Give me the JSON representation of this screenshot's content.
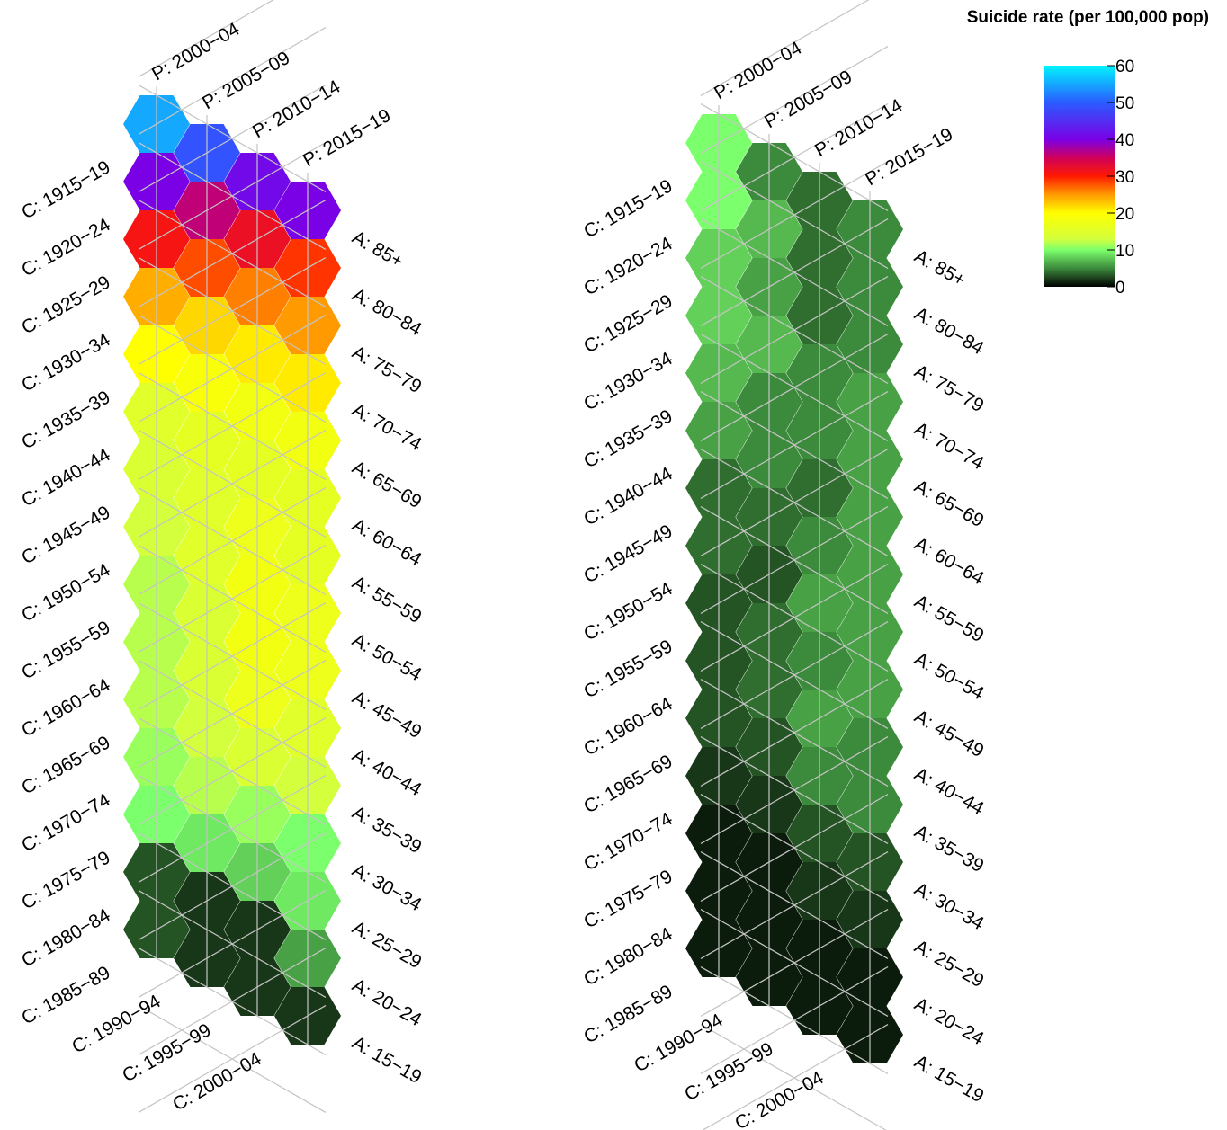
{
  "chart_data": {
    "type": "heatmap",
    "layout": "lexis-hexagon",
    "legend": {
      "title": "Suicide rate (per 100,000 pop)",
      "placement": "top-right",
      "range": [
        0,
        60
      ],
      "ticks": [
        0,
        10,
        20,
        30,
        40,
        50,
        60
      ],
      "stops": [
        {
          "value": 0,
          "color": "#000000"
        },
        {
          "value": 5,
          "color": "#3c8a3c"
        },
        {
          "value": 10,
          "color": "#7cff6c"
        },
        {
          "value": 13,
          "color": "#d4ff3c"
        },
        {
          "value": 20,
          "color": "#ffff00"
        },
        {
          "value": 25,
          "color": "#ff9a00"
        },
        {
          "value": 30,
          "color": "#ff1a00"
        },
        {
          "value": 35,
          "color": "#d0005a"
        },
        {
          "value": 40,
          "color": "#7a00e6"
        },
        {
          "value": 50,
          "color": "#2a5cff"
        },
        {
          "value": 60,
          "color": "#00f4ff"
        }
      ]
    },
    "periods": [
      "P: 2000−04",
      "P: 2005−09",
      "P: 2010−14",
      "P: 2015−19"
    ],
    "ages": [
      "A: 85+",
      "A: 80−84",
      "A: 75−79",
      "A: 70−74",
      "A: 65−69",
      "A: 60−64",
      "A: 55−59",
      "A: 50−54",
      "A: 45−49",
      "A: 40−44",
      "A: 35−39",
      "A: 30−34",
      "A: 25−29",
      "A: 20−24",
      "A: 15−19"
    ],
    "cohorts": [
      "C: 1915−19",
      "C: 1920−24",
      "C: 1925−29",
      "C: 1930−34",
      "C: 1935−39",
      "C: 1940−44",
      "C: 1945−49",
      "C: 1950−54",
      "C: 1955−59",
      "C: 1960−64",
      "C: 1965−69",
      "C: 1970−74",
      "C: 1975−79",
      "C: 1980−84",
      "C: 1985−89",
      "C: 1990−94",
      "C: 1995−99",
      "C: 2000−04"
    ],
    "panels": [
      {
        "name": "",
        "rates": [
          [
            55,
            49,
            41,
            40
          ],
          [
            40,
            36,
            32,
            29
          ],
          [
            31,
            28,
            26,
            25
          ],
          [
            24,
            22,
            21,
            21
          ],
          [
            20,
            19,
            18,
            18
          ],
          [
            15,
            16,
            16,
            16
          ],
          [
            14,
            15,
            17,
            16
          ],
          [
            13,
            15,
            18,
            17
          ],
          [
            12,
            14,
            18,
            17
          ],
          [
            12,
            14,
            17,
            15
          ],
          [
            12,
            13,
            14,
            13
          ],
          [
            11,
            12,
            11,
            10
          ],
          [
            10,
            9,
            8,
            9
          ],
          [
            3,
            2,
            2,
            6
          ],
          [
            3,
            2,
            2,
            2
          ]
        ]
      },
      {
        "name": "",
        "rates": [
          [
            10,
            5,
            4,
            5
          ],
          [
            10,
            7,
            4,
            5
          ],
          [
            8,
            6,
            4,
            5
          ],
          [
            8,
            7,
            5,
            6
          ],
          [
            7,
            5,
            5,
            6
          ],
          [
            6,
            5,
            4,
            6
          ],
          [
            4,
            4,
            5,
            6
          ],
          [
            4,
            3,
            6,
            6
          ],
          [
            3,
            4,
            5,
            6
          ],
          [
            3,
            4,
            6,
            5
          ],
          [
            3,
            3,
            5,
            5
          ],
          [
            2,
            2,
            3,
            3
          ],
          [
            1,
            1,
            2,
            2
          ],
          [
            1,
            1,
            1,
            1
          ],
          [
            1,
            1,
            1,
            1
          ]
        ]
      }
    ]
  }
}
